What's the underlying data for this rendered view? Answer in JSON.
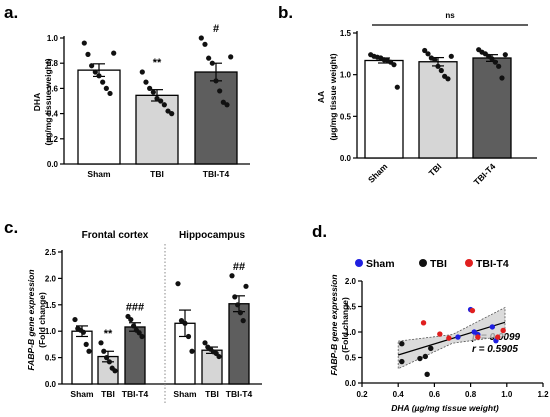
{
  "panels": [
    {
      "letter": "a."
    },
    {
      "letter": "b."
    },
    {
      "letter": "c."
    },
    {
      "letter": "d."
    }
  ],
  "chart_data": [
    {
      "id": "a",
      "type": "bar",
      "categories": [
        "Sham",
        "TBI",
        "TBI-T4"
      ],
      "values": [
        0.745,
        0.545,
        0.73
      ],
      "sem": [
        0.05,
        0.045,
        0.07
      ],
      "points": [
        [
          0.96,
          0.87,
          0.78,
          0.73,
          0.7,
          0.65,
          0.6,
          0.56,
          0.88
        ],
        [
          0.73,
          0.65,
          0.6,
          0.57,
          0.52,
          0.5,
          0.47,
          0.42,
          0.4
        ],
        [
          1.0,
          0.95,
          0.84,
          0.8,
          0.66,
          0.58,
          0.49,
          0.47,
          0.85
        ]
      ],
      "fills": [
        "#ffffff",
        "#d6d6d6",
        "#5e5e5e"
      ],
      "significance": [
        "",
        "**",
        "#"
      ],
      "ylabel": [
        "DHA",
        "(µg/mg tissue weight)"
      ],
      "ylim": [
        0,
        1.0
      ],
      "yticks": [
        "0.0",
        "0.2",
        "0.4",
        "0.6",
        "0.8",
        "1.0"
      ]
    },
    {
      "id": "b",
      "type": "bar",
      "categories": [
        "Sham",
        "TBI",
        "TBI-T4"
      ],
      "values": [
        1.17,
        1.155,
        1.2
      ],
      "sem": [
        0.03,
        0.05,
        0.04
      ],
      "points": [
        [
          1.24,
          1.22,
          1.21,
          1.2,
          1.18,
          1.17,
          1.15,
          1.12,
          0.85
        ],
        [
          1.29,
          1.25,
          1.2,
          1.18,
          1.1,
          1.05,
          0.98,
          0.95,
          1.22
        ],
        [
          1.3,
          1.27,
          1.25,
          1.22,
          1.19,
          1.15,
          1.1,
          0.96,
          1.24
        ]
      ],
      "fills": [
        "#ffffff",
        "#d6d6d6",
        "#5e5e5e"
      ],
      "bracket_label": "ns",
      "ylabel": [
        "AA",
        "(µg/mg tissue weight)"
      ],
      "ylim": [
        0,
        1.5
      ],
      "yticks": [
        "0.0",
        "0.5",
        "1.0",
        "1.5"
      ]
    },
    {
      "id": "c",
      "type": "bar",
      "ylabel": [
        "FABP-B gene expression",
        "(Fold change)"
      ],
      "ylim": [
        0,
        2.5
      ],
      "yticks": [
        "0.0",
        "0.5",
        "1.0",
        "1.5",
        "2.0",
        "2.5"
      ],
      "groups": [
        {
          "title": "Frontal cortex",
          "categories": [
            "Sham",
            "TBI",
            "TBI-T4"
          ],
          "values": [
            1.0,
            0.52,
            1.08
          ],
          "sem": [
            0.1,
            0.1,
            0.08
          ],
          "points": [
            [
              1.22,
              1.05,
              1.02,
              0.98,
              0.75,
              0.62
            ],
            [
              0.78,
              0.62,
              0.5,
              0.42,
              0.3,
              0.25
            ],
            [
              1.28,
              1.22,
              1.1,
              1.02,
              0.97,
              0.9
            ]
          ],
          "significance": [
            "",
            "**",
            "###"
          ]
        },
        {
          "title": "Hippocampus",
          "categories": [
            "Sham",
            "TBI",
            "TBI-T4"
          ],
          "values": [
            1.15,
            0.64,
            1.52
          ],
          "sem": [
            0.25,
            0.06,
            0.15
          ],
          "points": [
            [
              1.9,
              1.2,
              1.15,
              0.9,
              0.62
            ],
            [
              0.78,
              0.7,
              0.66,
              0.61,
              0.58,
              0.52
            ],
            [
              2.05,
              1.65,
              1.5,
              1.35,
              1.2,
              1.85
            ]
          ],
          "significance": [
            "",
            "",
            "##"
          ]
        }
      ],
      "fills": [
        "#ffffff",
        "#d6d6d6",
        "#5e5e5e"
      ]
    },
    {
      "id": "d",
      "type": "scatter",
      "legend": [
        {
          "name": "Sham",
          "color": "#1f1fe0"
        },
        {
          "name": "TBI",
          "color": "#111111"
        },
        {
          "name": "TBI-T4",
          "color": "#e01f1f"
        }
      ],
      "series": [
        {
          "name": "Sham",
          "points": [
            [
              0.73,
              0.9
            ],
            [
              0.8,
              1.44
            ],
            [
              0.82,
              1.0
            ],
            [
              0.84,
              0.95
            ],
            [
              0.92,
              1.1
            ],
            [
              0.94,
              0.83
            ]
          ]
        },
        {
          "name": "TBI",
          "points": [
            [
              0.42,
              0.42
            ],
            [
              0.42,
              0.77
            ],
            [
              0.52,
              0.48
            ],
            [
              0.55,
              0.52
            ],
            [
              0.56,
              0.17
            ],
            [
              0.58,
              0.68
            ]
          ]
        },
        {
          "name": "TBI-T4",
          "points": [
            [
              0.54,
              1.18
            ],
            [
              0.63,
              0.96
            ],
            [
              0.68,
              0.88
            ],
            [
              0.81,
              1.42
            ],
            [
              0.84,
              0.9
            ],
            [
              0.95,
              0.9
            ],
            [
              0.98,
              1.03
            ]
          ]
        }
      ],
      "fit_line": [
        [
          0.4,
          0.55
        ],
        [
          0.99,
          1.19
        ]
      ],
      "confidence_band": {
        "x": [
          0.4,
          0.7,
          0.99
        ],
        "lower": [
          0.28,
          0.78,
          0.92
        ],
        "upper": [
          0.82,
          0.95,
          1.48
        ]
      },
      "annotations": [
        "p = 0.0099",
        "r = 0.5905"
      ],
      "xlabel": "DHA (µg/mg tissue weight)",
      "ylabel": [
        "FABP-B gene expression",
        "(Fold change)"
      ],
      "xlim": [
        0.2,
        1.2
      ],
      "ylim": [
        0,
        2.0
      ],
      "xticks": [
        "0.2",
        "0.4",
        "0.6",
        "0.8",
        "1.0",
        "1.2"
      ],
      "yticks": [
        "0.0",
        "0.5",
        "1.0",
        "1.5",
        "2.0"
      ]
    }
  ]
}
